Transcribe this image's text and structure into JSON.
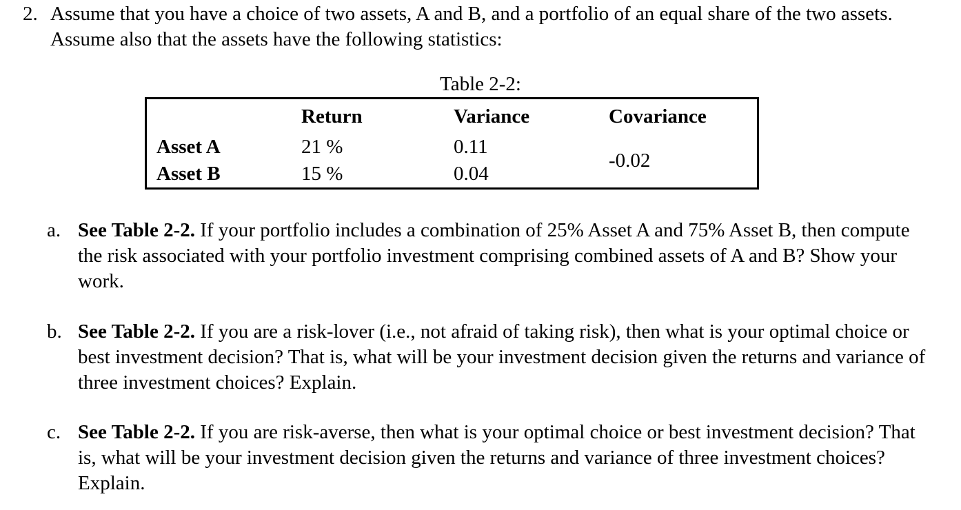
{
  "document": {
    "question_number": "2.",
    "intro": "Assume that you have a choice of two assets, A and B, and a portfolio of an equal share of the two assets. Assume also that the assets have the following statistics:",
    "table": {
      "title": "Table 2-2:",
      "headers": {
        "return": "Return",
        "variance": "Variance",
        "covariance": "Covariance"
      },
      "rows": [
        {
          "label": "Asset A",
          "return": "21 %",
          "variance": "0.11"
        },
        {
          "label": "Asset B",
          "return": "15 %",
          "variance": "0.04"
        }
      ],
      "covariance_value": "-0.02"
    },
    "parts": [
      {
        "marker": "a.",
        "lead": "See Table 2-2.",
        "text": " If your portfolio includes a combination of 25% Asset A and 75% Asset B, then compute the risk associated with your portfolio investment comprising combined assets of A and B? Show your work."
      },
      {
        "marker": "b.",
        "lead": "See Table 2-2.",
        "text": " If you are a risk-lover (i.e., not afraid of taking risk), then what is your optimal choice or best investment decision? That is, what will be your investment decision given the returns and variance of three investment choices? Explain."
      },
      {
        "marker": "c.",
        "lead": "See Table 2-2.",
        "text": " If you are risk-averse, then what is your optimal choice or best investment decision? That is, what will be your investment decision given the returns and variance of three investment choices? Explain."
      }
    ]
  }
}
